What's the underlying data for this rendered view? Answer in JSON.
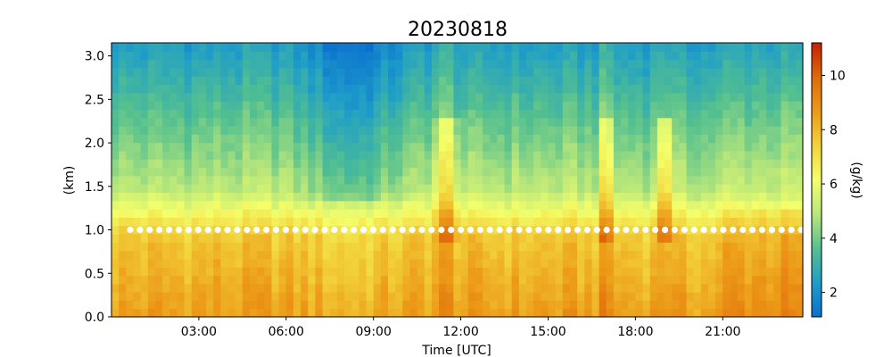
{
  "chart_data": {
    "type": "heatmap",
    "title": "20230818",
    "xlabel": "Time [UTC]",
    "ylabel": "(km)",
    "colorbar_label": "(g/kg)",
    "xlim_hours": [
      0,
      23.75
    ],
    "ylim_km": [
      0.0,
      3.15
    ],
    "x_ticks": [
      {
        "value": 3,
        "label": "03:00"
      },
      {
        "value": 6,
        "label": "06:00"
      },
      {
        "value": 9,
        "label": "09:00"
      },
      {
        "value": 12,
        "label": "12:00"
      },
      {
        "value": 15,
        "label": "15:00"
      },
      {
        "value": 18,
        "label": "18:00"
      },
      {
        "value": 21,
        "label": "21:00"
      }
    ],
    "y_ticks": [
      {
        "value": 0.0,
        "label": "0.0"
      },
      {
        "value": 0.5,
        "label": "0.5"
      },
      {
        "value": 1.0,
        "label": "1.0"
      },
      {
        "value": 1.5,
        "label": "1.5"
      },
      {
        "value": 2.0,
        "label": "2.0"
      },
      {
        "value": 2.5,
        "label": "2.5"
      },
      {
        "value": 3.0,
        "label": "3.0"
      }
    ],
    "colorbar": {
      "vmin": 1.1,
      "vmax": 11.2,
      "ticks": [
        {
          "value": 2,
          "label": "2"
        },
        {
          "value": 4,
          "label": "4"
        },
        {
          "value": 6,
          "label": "6"
        },
        {
          "value": 8,
          "label": "8"
        },
        {
          "value": 10,
          "label": "10"
        }
      ],
      "colors": [
        "#0a6fd0",
        "#1f9ec8",
        "#54c08f",
        "#b9e77a",
        "#f4ff6a",
        "#f2d23a",
        "#ec9a18",
        "#e06a0a",
        "#c81e00"
      ]
    },
    "marker_line": {
      "height_km": 1.0,
      "color": "#ffffff",
      "style": "dotted"
    },
    "mixing_ratio_profile_description": "Moist layer about 7-9 g/kg below ~1 km, decreasing to about 2-3 g/kg near 3 km; moist plumes near 11:30, 17:00 and 19:00 UTC"
  }
}
